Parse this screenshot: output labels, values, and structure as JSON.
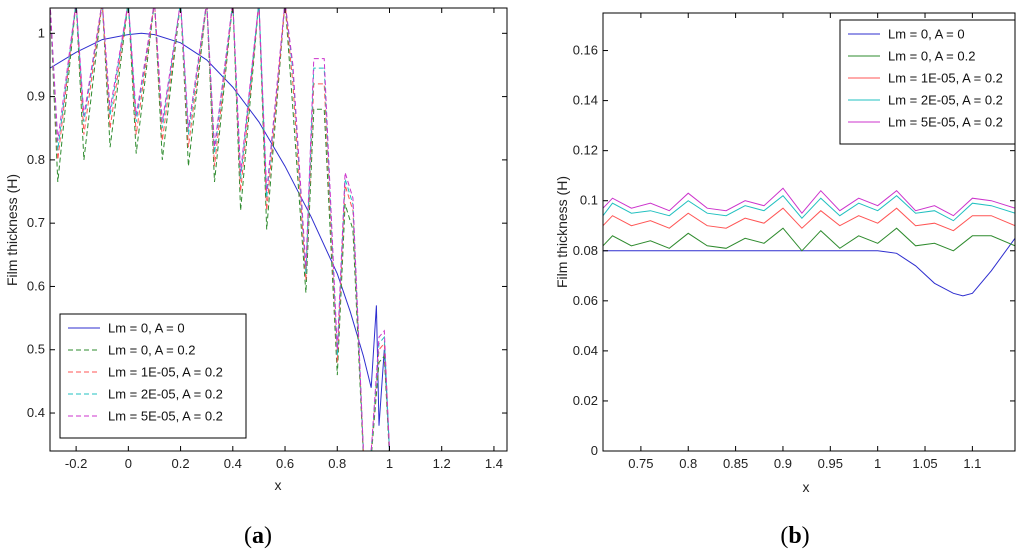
{
  "chart_data": [
    {
      "type": "line",
      "panel_label": "(a)",
      "xlabel": "x",
      "ylabel": "Film thickness (H)",
      "xlim": [
        -0.3,
        1.45
      ],
      "ylim": [
        0.34,
        1.04
      ],
      "xticks": [
        -0.2,
        0,
        0.2,
        0.4,
        0.6,
        0.8,
        1,
        1.2,
        1.4
      ],
      "xtick_labels": [
        "-0.2",
        "0",
        "0.2",
        "0.4",
        "0.6",
        "0.8",
        "1",
        "1.2",
        "1.4"
      ],
      "yticks": [
        0.4,
        0.5,
        0.6,
        0.7,
        0.8,
        0.9,
        1
      ],
      "ytick_labels": [
        "0.4",
        "0.5",
        "0.6",
        "0.7",
        "0.8",
        "0.9",
        "1"
      ],
      "grid": false,
      "legend_position": "bottom-left",
      "series": [
        {
          "name": "Lm = 0, A = 0",
          "color": "#2e2ecf",
          "dash": "",
          "x": [
            -0.3,
            -0.2,
            -0.1,
            0,
            0.05,
            0.1,
            0.2,
            0.3,
            0.4,
            0.5,
            0.6,
            0.7,
            0.8,
            0.85,
            0.9,
            0.93,
            0.95,
            0.96,
            0.98,
            1.0
          ],
          "y": [
            0.945,
            0.97,
            0.99,
            0.998,
            1.0,
            0.998,
            0.985,
            0.958,
            0.915,
            0.86,
            0.79,
            0.71,
            0.62,
            0.56,
            0.49,
            0.44,
            0.57,
            0.38,
            0.5,
            0.34
          ]
        },
        {
          "name": "Lm = 0, A = 0.2",
          "color": "#2e8b2e",
          "dash": "5,3",
          "x": [
            -0.3,
            -0.27,
            -0.2,
            -0.17,
            -0.1,
            -0.07,
            0,
            0.03,
            0.1,
            0.13,
            0.2,
            0.23,
            0.3,
            0.33,
            0.4,
            0.43,
            0.5,
            0.53,
            0.6,
            0.63,
            0.68,
            0.71,
            0.75,
            0.8,
            0.83,
            0.86,
            0.9,
            0.93,
            0.96,
            0.98,
            1.0
          ],
          "y": [
            1.05,
            0.765,
            1.05,
            0.8,
            1.05,
            0.82,
            1.05,
            0.81,
            1.05,
            0.8,
            1.05,
            0.79,
            1.05,
            0.765,
            1.05,
            0.72,
            1.05,
            0.69,
            1.05,
            0.88,
            0.59,
            0.88,
            0.88,
            0.46,
            0.73,
            0.69,
            0.33,
            0.33,
            0.48,
            0.49,
            0.33
          ]
        },
        {
          "name": "Lm = 1E-05, A = 0.2",
          "color": "#ff5555",
          "dash": "5,3",
          "x": [
            -0.3,
            -0.27,
            -0.2,
            -0.17,
            -0.1,
            -0.07,
            0,
            0.03,
            0.1,
            0.13,
            0.2,
            0.23,
            0.3,
            0.33,
            0.4,
            0.43,
            0.5,
            0.53,
            0.6,
            0.63,
            0.68,
            0.71,
            0.75,
            0.8,
            0.83,
            0.86,
            0.9,
            0.93,
            0.96,
            0.98,
            1.0
          ],
          "y": [
            1.05,
            0.8,
            1.05,
            0.84,
            1.05,
            0.85,
            1.05,
            0.84,
            1.05,
            0.83,
            1.05,
            0.82,
            1.05,
            0.79,
            1.05,
            0.75,
            1.05,
            0.72,
            1.05,
            0.92,
            0.61,
            0.92,
            0.92,
            0.48,
            0.76,
            0.72,
            0.34,
            0.34,
            0.5,
            0.51,
            0.34
          ]
        },
        {
          "name": "Lm = 2E-05, A = 0.2",
          "color": "#22c0c0",
          "dash": "5,3",
          "x": [
            -0.3,
            -0.27,
            -0.2,
            -0.17,
            -0.1,
            -0.07,
            0,
            0.03,
            0.1,
            0.13,
            0.2,
            0.23,
            0.3,
            0.33,
            0.4,
            0.43,
            0.5,
            0.53,
            0.6,
            0.63,
            0.68,
            0.71,
            0.75,
            0.8,
            0.83,
            0.86,
            0.9,
            0.93,
            0.96,
            0.98,
            1.0
          ],
          "y": [
            1.05,
            0.815,
            1.05,
            0.86,
            1.05,
            0.87,
            1.05,
            0.86,
            1.05,
            0.85,
            1.05,
            0.84,
            1.05,
            0.81,
            1.05,
            0.77,
            1.05,
            0.74,
            1.05,
            0.94,
            0.62,
            0.945,
            0.945,
            0.49,
            0.77,
            0.73,
            0.34,
            0.34,
            0.51,
            0.52,
            0.34
          ]
        },
        {
          "name": "Lm = 5E-05, A = 0.2",
          "color": "#cc33cc",
          "dash": "5,3",
          "x": [
            -0.3,
            -0.27,
            -0.2,
            -0.17,
            -0.1,
            -0.07,
            0,
            0.03,
            0.1,
            0.13,
            0.2,
            0.23,
            0.3,
            0.33,
            0.4,
            0.43,
            0.5,
            0.53,
            0.6,
            0.63,
            0.68,
            0.71,
            0.75,
            0.8,
            0.83,
            0.86,
            0.9,
            0.93,
            0.96,
            0.98,
            1.0
          ],
          "y": [
            1.05,
            0.83,
            1.05,
            0.87,
            1.05,
            0.88,
            1.05,
            0.87,
            1.05,
            0.86,
            1.05,
            0.85,
            1.05,
            0.82,
            1.05,
            0.78,
            1.05,
            0.75,
            1.05,
            0.95,
            0.63,
            0.96,
            0.96,
            0.5,
            0.78,
            0.74,
            0.34,
            0.34,
            0.52,
            0.53,
            0.34
          ]
        }
      ]
    },
    {
      "type": "line",
      "panel_label": "(b)",
      "xlabel": "x",
      "ylabel": "Film thickness (H)",
      "xlim": [
        0.71,
        1.145
      ],
      "ylim": [
        0,
        0.175
      ],
      "xticks": [
        0.75,
        0.8,
        0.85,
        0.9,
        0.95,
        1,
        1.05,
        1.1
      ],
      "xtick_labels": [
        "0.75",
        "0.8",
        "0.85",
        "0.9",
        "0.95",
        "1",
        "1.05",
        "1.1"
      ],
      "yticks": [
        0,
        0.02,
        0.04,
        0.06,
        0.08,
        0.1,
        0.12,
        0.14,
        0.16
      ],
      "ytick_labels": [
        "0",
        "0.02",
        "0.04",
        "0.06",
        "0.08",
        "0.1",
        "0.12",
        "0.14",
        "0.16"
      ],
      "grid": false,
      "legend_position": "top-right",
      "series": [
        {
          "name": "Lm = 0, A = 0",
          "color": "#2e2ecf",
          "dash": "",
          "x": [
            0.71,
            0.75,
            0.8,
            0.85,
            0.9,
            0.95,
            1.0,
            1.02,
            1.04,
            1.06,
            1.08,
            1.09,
            1.1,
            1.12,
            1.145
          ],
          "y": [
            0.08,
            0.08,
            0.08,
            0.08,
            0.08,
            0.08,
            0.08,
            0.079,
            0.074,
            0.067,
            0.063,
            0.062,
            0.063,
            0.072,
            0.085
          ]
        },
        {
          "name": "Lm = 0, A = 0.2",
          "color": "#2e8b2e",
          "dash": "",
          "x": [
            0.71,
            0.72,
            0.74,
            0.76,
            0.78,
            0.8,
            0.82,
            0.84,
            0.86,
            0.88,
            0.9,
            0.92,
            0.94,
            0.96,
            0.98,
            1.0,
            1.02,
            1.04,
            1.06,
            1.08,
            1.1,
            1.12,
            1.145
          ],
          "y": [
            0.082,
            0.086,
            0.082,
            0.084,
            0.081,
            0.087,
            0.082,
            0.081,
            0.085,
            0.083,
            0.089,
            0.08,
            0.088,
            0.081,
            0.086,
            0.083,
            0.089,
            0.082,
            0.083,
            0.08,
            0.086,
            0.086,
            0.082
          ]
        },
        {
          "name": "Lm = 1E-05, A = 0.2",
          "color": "#ff5555",
          "dash": "",
          "x": [
            0.71,
            0.72,
            0.74,
            0.76,
            0.78,
            0.8,
            0.82,
            0.84,
            0.86,
            0.88,
            0.9,
            0.92,
            0.94,
            0.96,
            0.98,
            1.0,
            1.02,
            1.04,
            1.06,
            1.08,
            1.1,
            1.12,
            1.145
          ],
          "y": [
            0.09,
            0.094,
            0.09,
            0.092,
            0.089,
            0.095,
            0.09,
            0.089,
            0.093,
            0.091,
            0.097,
            0.089,
            0.096,
            0.09,
            0.094,
            0.091,
            0.097,
            0.09,
            0.091,
            0.088,
            0.094,
            0.094,
            0.09
          ]
        },
        {
          "name": "Lm = 2E-05, A = 0.2",
          "color": "#22c0c0",
          "dash": "",
          "x": [
            0.71,
            0.72,
            0.74,
            0.76,
            0.78,
            0.8,
            0.82,
            0.84,
            0.86,
            0.88,
            0.9,
            0.92,
            0.94,
            0.96,
            0.98,
            1.0,
            1.02,
            1.04,
            1.06,
            1.08,
            1.1,
            1.12,
            1.145
          ],
          "y": [
            0.094,
            0.099,
            0.095,
            0.096,
            0.094,
            0.1,
            0.095,
            0.094,
            0.098,
            0.096,
            0.102,
            0.093,
            0.101,
            0.094,
            0.099,
            0.096,
            0.102,
            0.095,
            0.096,
            0.092,
            0.099,
            0.098,
            0.095
          ]
        },
        {
          "name": "Lm = 5E-05, A = 0.2",
          "color": "#cc33cc",
          "dash": "",
          "x": [
            0.71,
            0.72,
            0.74,
            0.76,
            0.78,
            0.8,
            0.82,
            0.84,
            0.86,
            0.88,
            0.9,
            0.92,
            0.94,
            0.96,
            0.98,
            1.0,
            1.02,
            1.04,
            1.06,
            1.08,
            1.1,
            1.12,
            1.145
          ],
          "y": [
            0.097,
            0.101,
            0.097,
            0.099,
            0.096,
            0.103,
            0.097,
            0.096,
            0.1,
            0.098,
            0.105,
            0.095,
            0.104,
            0.096,
            0.101,
            0.098,
            0.104,
            0.096,
            0.098,
            0.094,
            0.101,
            0.1,
            0.097
          ]
        }
      ]
    }
  ]
}
